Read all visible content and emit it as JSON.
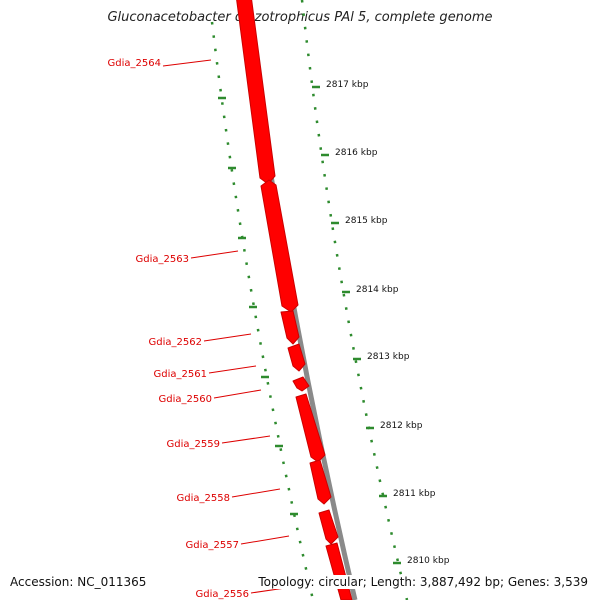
{
  "title": "Gluconacetobacter diazotrophicus PAl 5, complete genome",
  "footer": {
    "accession_label": "Accession:",
    "accession": "NC_011365",
    "topology": "Topology: circular; Length: 3,887,492 bp; Genes: 3,539"
  },
  "genes": [
    {
      "id": "Gdia_2564",
      "strand": "+"
    },
    {
      "id": "Gdia_2563",
      "strand": "+"
    },
    {
      "id": "Gdia_2562",
      "strand": "+"
    },
    {
      "id": "Gdia_2561",
      "strand": "+"
    },
    {
      "id": "Gdia_2560",
      "strand": "+"
    },
    {
      "id": "Gdia_2559",
      "strand": "+"
    },
    {
      "id": "Gdia_2558",
      "strand": "+"
    },
    {
      "id": "Gdia_2557",
      "strand": "+"
    },
    {
      "id": "Gdia_2556",
      "strand": "+"
    }
  ],
  "ruler_labels": [
    "2817 kbp",
    "2816 kbp",
    "2815 kbp",
    "2814 kbp",
    "2813 kbp",
    "2812 kbp",
    "2811 kbp",
    "2810 kbp"
  ],
  "colors": {
    "gene_fill": "#ff0000",
    "gene_stroke": "#cc0000",
    "backbone": "#8a8a8a",
    "ruler": "#2e8b2e",
    "gene_label": "#dd0000"
  }
}
